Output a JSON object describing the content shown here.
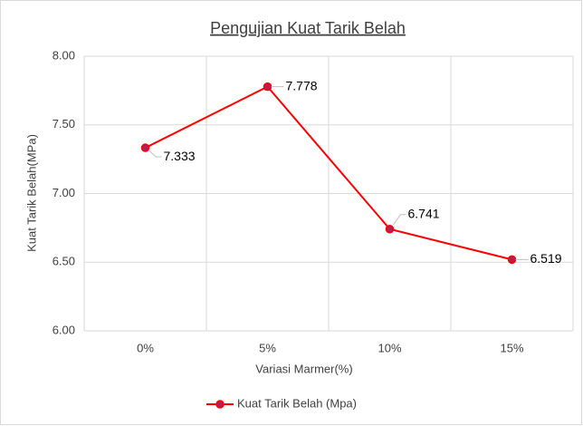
{
  "chart_data": {
    "type": "line",
    "title": "Pengujian Kuat Tarik Belah",
    "x_label": "Variasi Marmer(%)",
    "y_label": "Kuat Tarik Belah(MPa)",
    "categories": [
      "0%",
      "5%",
      "10%",
      "15%"
    ],
    "series": [
      {
        "name": "Kuat Tarik Belah (Mpa)",
        "color": "#ff0000",
        "marker_color": "#b0205a",
        "values": [
          7.333,
          7.778,
          6.741,
          6.519
        ]
      }
    ],
    "ylim": [
      6,
      8
    ],
    "yticks": [
      {
        "value": 6,
        "label": "6.00"
      },
      {
        "value": 6.5,
        "label": "6.50"
      },
      {
        "value": 7,
        "label": "7.00"
      },
      {
        "value": 7.5,
        "label": "7.50"
      },
      {
        "value": 8,
        "label": "8.00"
      }
    ],
    "grid": true,
    "legend": "bottom"
  }
}
